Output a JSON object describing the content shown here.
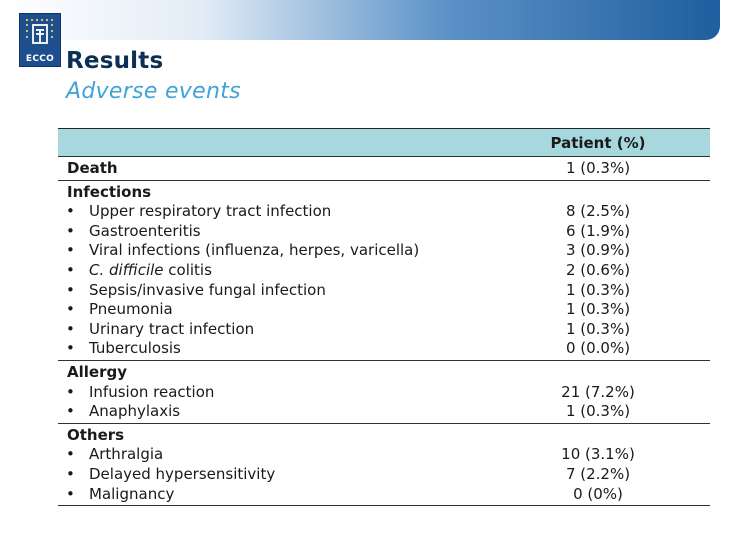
{
  "logo": {
    "text": "ECCO"
  },
  "slide": {
    "title": "Results",
    "subtitle": "Adverse events"
  },
  "table": {
    "header": "Patient (%)",
    "death": {
      "label": "Death",
      "value": "1 (0.3%)"
    },
    "infections": {
      "heading": "Infections",
      "items": [
        {
          "label": "Upper respiratory tract infection",
          "value": "8 (2.5%)"
        },
        {
          "label": "Gastroenteritis",
          "value": "6 (1.9%)"
        },
        {
          "label": "Viral infections (influenza, herpes, varicella)",
          "value": "3 (0.9%)"
        },
        {
          "label_italic": "C. difficile",
          "label_rest": " colitis",
          "value": "2 (0.6%)"
        },
        {
          "label": "Sepsis/invasive fungal infection",
          "value": "1 (0.3%)"
        },
        {
          "label": "Pneumonia",
          "value": "1 (0.3%)"
        },
        {
          "label": "Urinary tract infection",
          "value": "1 (0.3%)"
        },
        {
          "label": "Tuberculosis",
          "value": "0 (0.0%)"
        }
      ]
    },
    "allergy": {
      "heading": "Allergy",
      "items": [
        {
          "label": "Infusion reaction",
          "value": "21 (7.2%)"
        },
        {
          "label": "Anaphylaxis",
          "value": "1 (0.3%)"
        }
      ]
    },
    "others": {
      "heading": "Others",
      "items": [
        {
          "label": "Arthralgia",
          "value": "10 (3.1%)"
        },
        {
          "label": "Delayed hypersensitivity",
          "value": "7 (2.2%)"
        },
        {
          "label": "Malignancy",
          "value": "0 (0%)"
        }
      ]
    }
  },
  "bullet": "•",
  "colors": {
    "title": "#0b2f55",
    "subtitle": "#3fa4d6",
    "header_bg": "#a7d8dd",
    "banner": "#1f5e9f"
  }
}
